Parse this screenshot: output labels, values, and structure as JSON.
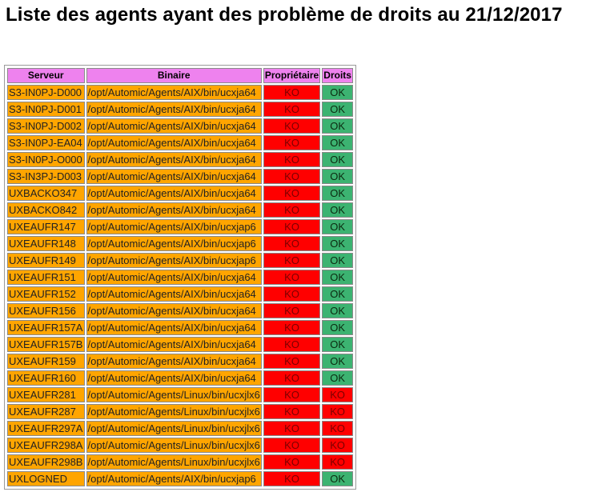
{
  "title": "Liste des agents ayant des problème de droits au 21/12/2017",
  "headers": {
    "server": "Serveur",
    "binary": "Binaire",
    "owner": "Propriétaire",
    "rights": "Droits"
  },
  "colors": {
    "header": "#ee82ee",
    "cell": "#ffa500",
    "ko": "#ff0000",
    "ok": "#3cb371"
  },
  "rows": [
    {
      "server": "S3-IN0PJ-D000",
      "binary": "/opt/Automic/Agents/AIX/bin/ucxja64",
      "owner": "KO",
      "rights": "OK"
    },
    {
      "server": "S3-IN0PJ-D001",
      "binary": "/opt/Automic/Agents/AIX/bin/ucxja64",
      "owner": "KO",
      "rights": "OK"
    },
    {
      "server": "S3-IN0PJ-D002",
      "binary": "/opt/Automic/Agents/AIX/bin/ucxja64",
      "owner": "KO",
      "rights": "OK"
    },
    {
      "server": "S3-IN0PJ-EA04",
      "binary": "/opt/Automic/Agents/AIX/bin/ucxja64",
      "owner": "KO",
      "rights": "OK"
    },
    {
      "server": "S3-IN0PJ-O000",
      "binary": "/opt/Automic/Agents/AIX/bin/ucxja64",
      "owner": "KO",
      "rights": "OK"
    },
    {
      "server": "S3-IN3PJ-D003",
      "binary": "/opt/Automic/Agents/AIX/bin/ucxja64",
      "owner": "KO",
      "rights": "OK"
    },
    {
      "server": "UXBACKO347",
      "binary": "/opt/Automic/Agents/AIX/bin/ucxja64",
      "owner": "KO",
      "rights": "OK"
    },
    {
      "server": "UXBACKO842",
      "binary": "/opt/Automic/Agents/AIX/bin/ucxja64",
      "owner": "KO",
      "rights": "OK"
    },
    {
      "server": "UXEAUFR147",
      "binary": "/opt/Automic/Agents/AIX/bin/ucxjap6",
      "owner": "KO",
      "rights": "OK"
    },
    {
      "server": "UXEAUFR148",
      "binary": "/opt/Automic/Agents/AIX/bin/ucxjap6",
      "owner": "KO",
      "rights": "OK"
    },
    {
      "server": "UXEAUFR149",
      "binary": "/opt/Automic/Agents/AIX/bin/ucxjap6",
      "owner": "KO",
      "rights": "OK"
    },
    {
      "server": "UXEAUFR151",
      "binary": "/opt/Automic/Agents/AIX/bin/ucxja64",
      "owner": "KO",
      "rights": "OK"
    },
    {
      "server": "UXEAUFR152",
      "binary": "/opt/Automic/Agents/AIX/bin/ucxja64",
      "owner": "KO",
      "rights": "OK"
    },
    {
      "server": "UXEAUFR156",
      "binary": "/opt/Automic/Agents/AIX/bin/ucxja64",
      "owner": "KO",
      "rights": "OK"
    },
    {
      "server": "UXEAUFR157A",
      "binary": "/opt/Automic/Agents/AIX/bin/ucxja64",
      "owner": "KO",
      "rights": "OK"
    },
    {
      "server": "UXEAUFR157B",
      "binary": "/opt/Automic/Agents/AIX/bin/ucxja64",
      "owner": "KO",
      "rights": "OK"
    },
    {
      "server": "UXEAUFR159",
      "binary": "/opt/Automic/Agents/AIX/bin/ucxja64",
      "owner": "KO",
      "rights": "OK"
    },
    {
      "server": "UXEAUFR160",
      "binary": "/opt/Automic/Agents/AIX/bin/ucxja64",
      "owner": "KO",
      "rights": "OK"
    },
    {
      "server": "UXEAUFR281",
      "binary": "/opt/Automic/Agents/Linux/bin/ucxjlx6",
      "owner": "KO",
      "rights": "KO"
    },
    {
      "server": "UXEAUFR287",
      "binary": "/opt/Automic/Agents/Linux/bin/ucxjlx6",
      "owner": "KO",
      "rights": "KO"
    },
    {
      "server": "UXEAUFR297A",
      "binary": "/opt/Automic/Agents/Linux/bin/ucxjlx6",
      "owner": "KO",
      "rights": "KO"
    },
    {
      "server": "UXEAUFR298A",
      "binary": "/opt/Automic/Agents/Linux/bin/ucxjlx6",
      "owner": "KO",
      "rights": "KO"
    },
    {
      "server": "UXEAUFR298B",
      "binary": "/opt/Automic/Agents/Linux/bin/ucxjlx6",
      "owner": "KO",
      "rights": "KO"
    },
    {
      "server": "UXLOGNED",
      "binary": "/opt/Automic/Agents/AIX/bin/ucxjap6",
      "owner": "KO",
      "rights": "OK"
    }
  ]
}
